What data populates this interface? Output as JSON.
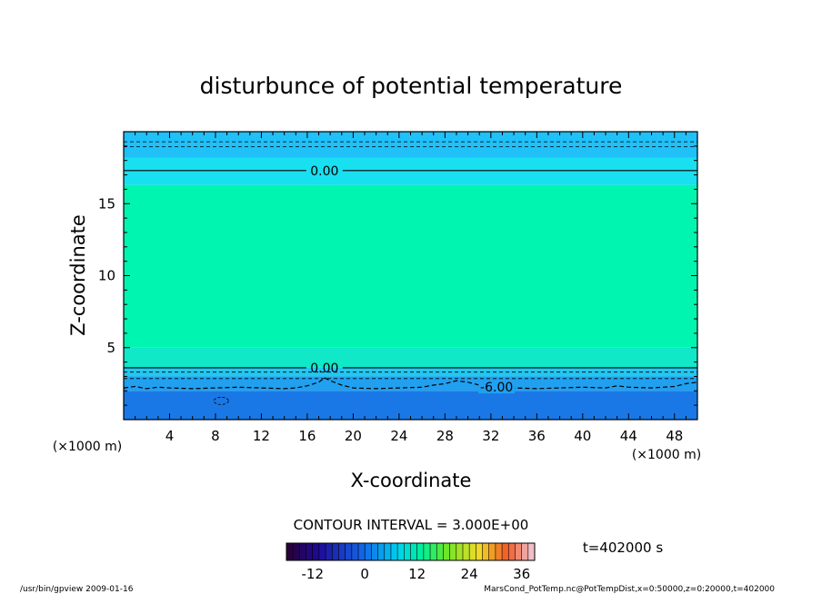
{
  "chart_data": {
    "type": "heatmap",
    "title": "disturbunce of potential temperature",
    "xlabel": "X-coordinate",
    "ylabel": "Z-coordinate",
    "x_unit": "(×1000 m)",
    "y_unit": "(×1000 m)",
    "xlim": [
      0,
      50
    ],
    "ylim": [
      0,
      20
    ],
    "x_ticks": [
      4,
      8,
      12,
      16,
      20,
      24,
      28,
      32,
      36,
      40,
      44,
      48
    ],
    "y_ticks": [
      5,
      10,
      15
    ],
    "contour_interval_label": "CONTOUR INTERVAL = 3.000E+00",
    "time_label": "t=402000 s",
    "colorbar": {
      "min": -18,
      "max": 39,
      "step": 1.5,
      "tick_values": [
        -12,
        0,
        12,
        24,
        36
      ]
    },
    "color_bands": [
      {
        "z0": 0,
        "z1": 2.0,
        "color": "#1a78e6"
      },
      {
        "z0": 2.0,
        "z1": 3.0,
        "color": "#21a0f0"
      },
      {
        "z0": 3.0,
        "z1": 3.6,
        "color": "#22c8f0"
      },
      {
        "z0": 3.6,
        "z1": 5.0,
        "color": "#10e8c8"
      },
      {
        "z0": 5.0,
        "z1": 16.3,
        "color": "#00f5b0"
      },
      {
        "z0": 16.3,
        "z1": 18.2,
        "color": "#18e0f0"
      },
      {
        "z0": 18.2,
        "z1": 20.0,
        "color": "#20c0f8"
      }
    ],
    "contours": [
      {
        "level": "0.00",
        "z": 17.3,
        "style": "solid",
        "label_x": 17.5
      },
      {
        "level": "0.00",
        "z": 3.6,
        "style": "solid",
        "label_x": 17.5
      },
      {
        "level": "-6.00",
        "z": 2.2,
        "style": "dashed",
        "label_x": 32.5
      }
    ],
    "dashed_contours": [
      19.3,
      18.95,
      3.3,
      2.85
    ],
    "wavy_contour": {
      "x": [
        0,
        1,
        2,
        3,
        4,
        6,
        8,
        10,
        12,
        14,
        15,
        16,
        17,
        17.5,
        18,
        19,
        20,
        22,
        24,
        26,
        27,
        28,
        29,
        30,
        31,
        32,
        34,
        36,
        38,
        40,
        42,
        43,
        44,
        46,
        48,
        49,
        50
      ],
      "z": [
        2.2,
        2.3,
        2.15,
        2.25,
        2.2,
        2.15,
        2.2,
        2.25,
        2.2,
        2.15,
        2.2,
        2.35,
        2.6,
        2.9,
        2.7,
        2.4,
        2.2,
        2.15,
        2.2,
        2.25,
        2.4,
        2.5,
        2.7,
        2.6,
        2.4,
        2.2,
        2.2,
        2.15,
        2.2,
        2.25,
        2.2,
        2.35,
        2.25,
        2.2,
        2.3,
        2.5,
        2.6
      ]
    }
  },
  "footer": {
    "program": "/usr/bin/gpview   2009-01-16",
    "source": "MarsCond_PotTemp.nc@PotTempDist,x=0:50000,z=0:20000,t=402000"
  }
}
